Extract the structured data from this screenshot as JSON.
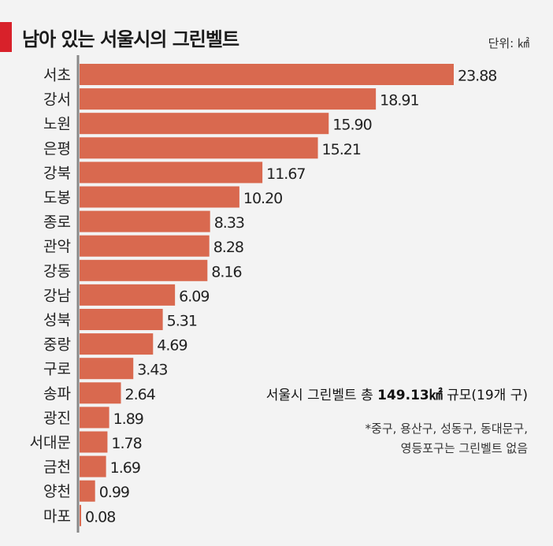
{
  "title": "남아 있는 서울시의 그린벨트",
  "unit": "단위: ㎢",
  "summary": {
    "prefix": "서울시 그린벨트 총 ",
    "total": "149.13㎢",
    "suffix": " 규모(19개 구)"
  },
  "note": {
    "line1": "*중구, 용산구, 성동구, 동대문구,",
    "line2": "영등포구는 그린벨트 없음"
  },
  "colors": {
    "bar": "#d9694f",
    "axis": "#888888",
    "accent": "#d8212a"
  },
  "chart_data": {
    "type": "bar",
    "orientation": "horizontal",
    "categories": [
      "서초",
      "강서",
      "노원",
      "은평",
      "강북",
      "도봉",
      "종로",
      "관악",
      "강동",
      "강남",
      "성북",
      "중랑",
      "구로",
      "송파",
      "광진",
      "서대문",
      "금천",
      "양천",
      "마포"
    ],
    "values": [
      23.88,
      18.91,
      15.9,
      15.21,
      11.67,
      10.2,
      8.33,
      8.28,
      8.16,
      6.09,
      5.31,
      4.69,
      3.43,
      2.64,
      1.89,
      1.78,
      1.69,
      0.99,
      0.08
    ],
    "value_labels": [
      "23.88",
      "18.91",
      "15.90",
      "15.21",
      "11.67",
      "10.20",
      "8.33",
      "8.28",
      "8.16",
      "6.09",
      "5.31",
      "4.69",
      "3.43",
      "2.64",
      "1.89",
      "1.78",
      "1.69",
      "0.99",
      "0.08"
    ],
    "xlim": [
      0,
      23.88
    ]
  }
}
